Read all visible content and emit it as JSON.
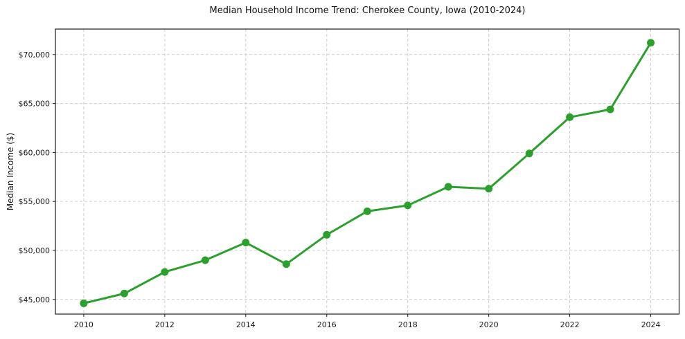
{
  "chart_data": {
    "type": "line",
    "title": "Median Household Income Trend: Cherokee County, Iowa (2010-2024)",
    "xlabel": "",
    "ylabel": "Median Income ($)",
    "series_name": "Median Household Income",
    "x": [
      2010,
      2011,
      2012,
      2013,
      2014,
      2015,
      2016,
      2017,
      2018,
      2019,
      2020,
      2021,
      2022,
      2023,
      2024
    ],
    "values": [
      44600,
      45600,
      47800,
      49000,
      50800,
      48600,
      51600,
      54000,
      54600,
      56500,
      56300,
      59900,
      63600,
      64400,
      71200
    ],
    "xlim": [
      2009.3,
      2024.7
    ],
    "ylim": [
      43500,
      72600
    ],
    "xticks": [
      2010,
      2012,
      2014,
      2016,
      2018,
      2020,
      2022,
      2024
    ],
    "xtick_labels": [
      "2010",
      "2012",
      "2014",
      "2016",
      "2018",
      "2020",
      "2022",
      "2024"
    ],
    "yticks": [
      45000,
      50000,
      55000,
      60000,
      65000,
      70000
    ],
    "ytick_labels": [
      "$45,000",
      "$50,000",
      "$55,000",
      "$60,000",
      "$65,000",
      "$70,000"
    ],
    "grid": true,
    "grid_style": "dashed",
    "legend_position": "none",
    "line_color": "#2ca02c",
    "marker": "circle",
    "grid_color": "#cccccc",
    "spine_color": "#1a1a1a",
    "background": "#ffffff"
  }
}
